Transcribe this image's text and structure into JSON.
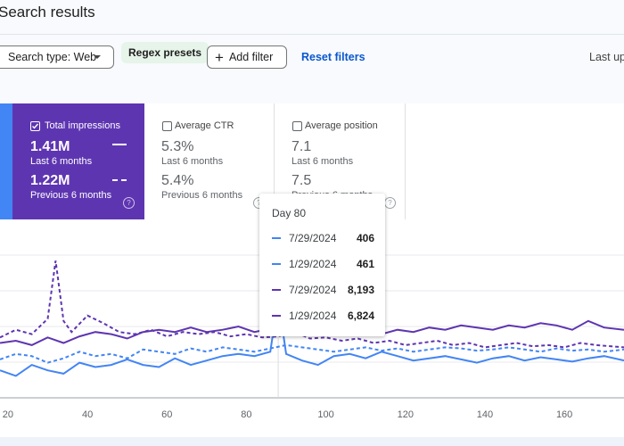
{
  "header": {
    "title": "Search results",
    "search_type_label": "Search type: Web",
    "regex_label": "Regex presets",
    "add_filter_label": "Add filter",
    "reset_label": "Reset filters",
    "last_updated": "Last up"
  },
  "cards": {
    "impressions": {
      "label": "Total impressions",
      "value": "1.41M",
      "period": "Last 6 months",
      "prev_value": "1.22M",
      "prev_period": "Previous 6 months",
      "checked": true,
      "color": "#5e35b1"
    },
    "ctr": {
      "label": "Average CTR",
      "value": "5.3%",
      "period": "Last 6 months",
      "prev_value": "5.4%",
      "prev_period": "Previous 6 months",
      "checked": false
    },
    "position": {
      "label": "Average position",
      "value": "7.1",
      "period": "Last 6 months",
      "prev_value": "7.5",
      "prev_period": "Previous 6 months",
      "checked": false
    }
  },
  "tooltip": {
    "title": "Day 80",
    "rows": [
      {
        "date": "7/29/2024",
        "value": "406",
        "color": "#4285f4",
        "style": "solid"
      },
      {
        "date": "1/29/2024",
        "value": "461",
        "color": "#4285f4",
        "style": "dashed"
      },
      {
        "date": "7/29/2024",
        "value": "8,193",
        "color": "#5e35b1",
        "style": "solid"
      },
      {
        "date": "1/29/2024",
        "value": "6,824",
        "color": "#5e35b1",
        "style": "dashed"
      }
    ]
  },
  "chart_data": {
    "type": "line",
    "x_ticks": [
      20,
      40,
      60,
      80,
      100,
      120,
      140,
      160
    ],
    "xlim": [
      18,
      175
    ],
    "series": [
      {
        "color": "#4285f4",
        "style": "solid",
        "x": [
          18,
          22,
          26,
          30,
          34,
          38,
          42,
          46,
          50,
          54,
          58,
          62,
          66,
          70,
          74,
          78,
          82,
          86,
          88,
          90,
          94,
          98,
          102,
          106,
          110,
          114,
          118,
          122,
          126,
          130,
          134,
          138,
          142,
          146,
          150,
          154,
          158,
          162,
          166,
          170,
          175
        ],
        "y": [
          0.25,
          0.2,
          0.3,
          0.25,
          0.22,
          0.32,
          0.28,
          0.3,
          0.35,
          0.3,
          0.28,
          0.36,
          0.3,
          0.34,
          0.38,
          0.4,
          0.38,
          0.42,
          0.9,
          0.4,
          0.34,
          0.3,
          0.38,
          0.4,
          0.36,
          0.42,
          0.38,
          0.34,
          0.36,
          0.38,
          0.35,
          0.32,
          0.36,
          0.38,
          0.34,
          0.37,
          0.35,
          0.33,
          0.36,
          0.38,
          0.34
        ]
      },
      {
        "color": "#4285f4",
        "style": "dashed",
        "x": [
          18,
          22,
          26,
          30,
          34,
          38,
          42,
          46,
          50,
          54,
          58,
          62,
          66,
          70,
          74,
          78,
          82,
          86,
          90,
          94,
          98,
          102,
          106,
          110,
          114,
          118,
          122,
          126,
          130,
          134,
          138,
          142,
          146,
          150,
          154,
          158,
          162,
          166,
          170,
          175
        ],
        "y": [
          0.35,
          0.4,
          0.38,
          0.32,
          0.36,
          0.42,
          0.38,
          0.4,
          0.36,
          0.44,
          0.42,
          0.4,
          0.45,
          0.42,
          0.46,
          0.44,
          0.42,
          0.45,
          0.48,
          0.46,
          0.44,
          0.42,
          0.44,
          0.46,
          0.43,
          0.45,
          0.42,
          0.44,
          0.46,
          0.45,
          0.43,
          0.44,
          0.46,
          0.44,
          0.42,
          0.45,
          0.43,
          0.44,
          0.42,
          0.44
        ]
      },
      {
        "color": "#5e35b1",
        "style": "solid",
        "x": [
          18,
          22,
          26,
          30,
          34,
          38,
          42,
          46,
          50,
          54,
          58,
          62,
          66,
          70,
          74,
          78,
          82,
          86,
          90,
          94,
          98,
          102,
          106,
          110,
          114,
          118,
          122,
          126,
          130,
          134,
          138,
          142,
          146,
          150,
          154,
          158,
          162,
          166,
          170,
          175
        ],
        "y": [
          0.5,
          0.52,
          0.48,
          0.55,
          0.5,
          0.56,
          0.6,
          0.58,
          0.54,
          0.6,
          0.62,
          0.6,
          0.64,
          0.6,
          0.62,
          0.65,
          0.6,
          0.63,
          0.62,
          0.66,
          0.6,
          0.58,
          0.62,
          0.6,
          0.58,
          0.62,
          0.6,
          0.64,
          0.62,
          0.66,
          0.64,
          0.62,
          0.66,
          0.64,
          0.68,
          0.66,
          0.62,
          0.7,
          0.64,
          0.62
        ]
      },
      {
        "color": "#5e35b1",
        "style": "dashed",
        "x": [
          18,
          22,
          26,
          30,
          32,
          34,
          36,
          40,
          44,
          48,
          52,
          56,
          60,
          64,
          68,
          72,
          76,
          80,
          84,
          88,
          92,
          96,
          100,
          104,
          108,
          112,
          116,
          120,
          124,
          128,
          132,
          136,
          140,
          144,
          148,
          152,
          156,
          160,
          164,
          168,
          175
        ],
        "y": [
          0.55,
          0.62,
          0.58,
          0.72,
          1.25,
          0.7,
          0.6,
          0.75,
          0.68,
          0.6,
          0.58,
          0.62,
          0.56,
          0.6,
          0.58,
          0.6,
          0.56,
          0.58,
          0.55,
          0.56,
          0.6,
          0.54,
          0.55,
          0.52,
          0.54,
          0.5,
          0.52,
          0.48,
          0.5,
          0.52,
          0.48,
          0.5,
          0.46,
          0.48,
          0.5,
          0.47,
          0.48,
          0.46,
          0.5,
          0.48,
          0.46
        ]
      }
    ]
  }
}
